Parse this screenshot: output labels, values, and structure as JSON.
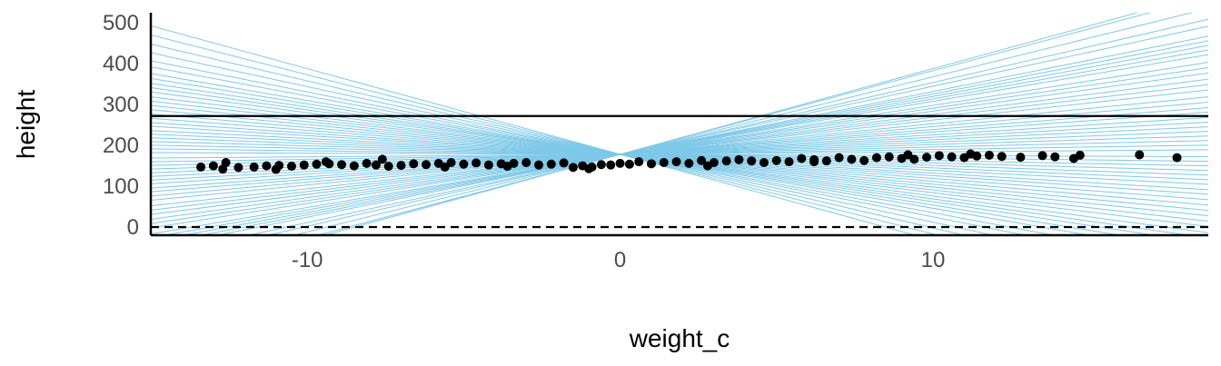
{
  "chart_data": {
    "type": "scatter",
    "title": "",
    "xlabel": "weight_c",
    "ylabel": "height",
    "xlim": [
      -15,
      18.8
    ],
    "ylim": [
      -20,
      525
    ],
    "x_ticks": [
      -10,
      0,
      10
    ],
    "y_ticks": [
      0,
      100,
      200,
      300,
      400,
      500
    ],
    "grid": false,
    "legend": "none",
    "reference_lines": [
      {
        "y": 0,
        "style": "dashed",
        "color": "#000000"
      },
      {
        "y": 272,
        "style": "solid",
        "color": "#000000"
      }
    ],
    "prior_lines": {
      "color": "#7ec8e8",
      "intercept": 178,
      "slopes": [
        21.0,
        20.5,
        19.0,
        17.6,
        16.7,
        15.4,
        14.8,
        14.2,
        13.6,
        13.0,
        12.0,
        11.3,
        10.6,
        9.8,
        9.1,
        8.4,
        7.5,
        6.8,
        6.1,
        5.5,
        4.8,
        4.2,
        3.6,
        3.0,
        2.4,
        1.8,
        1.2,
        0.6,
        -0.3,
        -0.9,
        -1.5,
        -2.1,
        -2.7,
        -3.3,
        -3.9,
        -4.6,
        -5.2,
        -5.9,
        -6.6,
        -7.3,
        -8.0,
        -8.7,
        -9.4,
        -10.2,
        -10.9,
        -11.6,
        -12.4,
        -13.2,
        -14.3,
        -15.3,
        -16.6,
        -18.0,
        -19.5,
        -21.0
      ]
    },
    "points": {
      "color": "#000000",
      "x": [
        -13.4,
        -13.0,
        -12.6,
        -12.2,
        -11.7,
        -11.3,
        -10.9,
        -10.5,
        -10.1,
        -9.7,
        -9.3,
        -8.9,
        -8.5,
        -8.1,
        -7.8,
        -7.4,
        -7.0,
        -6.6,
        -6.2,
        -5.8,
        -5.4,
        -5.0,
        -4.6,
        -4.2,
        -3.8,
        -3.4,
        -3.0,
        -2.6,
        -2.2,
        -1.8,
        -1.5,
        -1.2,
        -0.9,
        -0.6,
        -0.3,
        0.0,
        0.3,
        0.6,
        1.0,
        1.4,
        1.8,
        2.2,
        2.6,
        3.0,
        3.4,
        3.8,
        4.2,
        4.6,
        5.0,
        5.4,
        5.8,
        6.2,
        6.6,
        7.0,
        7.4,
        7.8,
        8.2,
        8.6,
        9.0,
        9.4,
        9.8,
        10.2,
        10.6,
        11.0,
        11.4,
        11.8,
        12.2,
        12.8,
        13.5,
        13.9,
        14.5,
        14.7,
        16.6,
        17.8,
        -12.7,
        -11.0,
        -9.4,
        -7.6,
        -5.6,
        -3.6,
        -1.0,
        2.8,
        6.2,
        9.2,
        11.2
      ],
      "y": [
        147,
        150,
        158,
        146,
        147,
        150,
        151,
        149,
        152,
        154,
        155,
        153,
        150,
        156,
        152,
        149,
        151,
        155,
        153,
        156,
        158,
        154,
        157,
        152,
        155,
        156,
        158,
        152,
        154,
        157,
        146,
        150,
        147,
        153,
        152,
        156,
        154,
        160,
        155,
        158,
        160,
        156,
        163,
        158,
        162,
        165,
        162,
        158,
        163,
        160,
        168,
        165,
        162,
        170,
        166,
        163,
        170,
        172,
        168,
        166,
        171,
        175,
        172,
        170,
        174,
        176,
        173,
        171,
        175,
        172,
        168,
        176,
        177,
        170,
        142,
        141,
        160,
        166,
        147,
        149,
        143,
        150,
        160,
        177,
        179
      ]
    }
  }
}
